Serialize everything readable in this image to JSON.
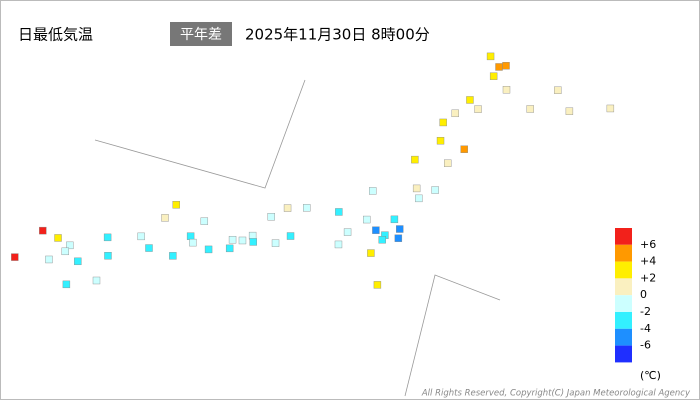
{
  "header": {
    "title": "日最低気温",
    "badge": "平年差",
    "datetime": "2025年11月30日 8時00分"
  },
  "legend": {
    "labels": [
      {
        "value": 6,
        "label": "+6"
      },
      {
        "value": 4,
        "label": "+4"
      },
      {
        "value": 2,
        "label": "+2"
      },
      0,
      -2,
      -4,
      -6
    ],
    "colors": [
      "#f2211b",
      "#ff9900",
      "#ffee00",
      "#faf0c0",
      "#ccffff",
      "#33f0ff",
      "#1e8fff",
      "#1f2fff"
    ],
    "unit": "(℃)"
  },
  "stations": [
    {
      "lon": 141.68,
      "lat": 45.4,
      "value": 3.5
    },
    {
      "lon": 142.0,
      "lat": 44.9,
      "value": 4.2
    },
    {
      "lon": 141.35,
      "lat": 43.06,
      "value": 2.5
    },
    {
      "lon": 142.37,
      "lat": 43.77,
      "value": 1.5
    },
    {
      "lon": 143.2,
      "lat": 42.9,
      "value": 1
    },
    {
      "lon": 144.38,
      "lat": 42.98,
      "value": 1.2
    },
    {
      "lon": 145.58,
      "lat": 43.33,
      "value": 0.5
    },
    {
      "lon": 140.7,
      "lat": 41.77,
      "value": 2.2
    },
    {
      "lon": 141.0,
      "lat": 42.3,
      "value": 1.8
    },
    {
      "lon": 143.9,
      "lat": 44.0,
      "value": 1.0
    },
    {
      "lon": 141.65,
      "lat": 42.63,
      "value": 0.8
    },
    {
      "lon": 142.2,
      "lat": 45.0,
      "value": 4.8
    },
    {
      "lon": 141.9,
      "lat": 44.4,
      "value": 2.6
    },
    {
      "lon": 140.74,
      "lat": 40.82,
      "value": 3.5
    },
    {
      "lon": 141.1,
      "lat": 39.7,
      "value": 1.2
    },
    {
      "lon": 140.1,
      "lat": 39.72,
      "value": 2.3
    },
    {
      "lon": 140.9,
      "lat": 38.26,
      "value": -0.5
    },
    {
      "lon": 140.34,
      "lat": 38.25,
      "value": 0.5
    },
    {
      "lon": 140.47,
      "lat": 37.75,
      "value": -1
    },
    {
      "lon": 141.5,
      "lat": 40.5,
      "value": 4.5
    },
    {
      "lon": 139.7,
      "lat": 35.69,
      "value": -3.5
    },
    {
      "lon": 140.1,
      "lat": 36.08,
      "value": -4.5
    },
    {
      "lon": 139.88,
      "lat": 36.55,
      "value": -2.5
    },
    {
      "lon": 139.06,
      "lat": 36.4,
      "value": -1.5
    },
    {
      "lon": 139.65,
      "lat": 35.44,
      "value": -2.2
    },
    {
      "lon": 140.12,
      "lat": 35.6,
      "value": -4.8
    },
    {
      "lon": 139.4,
      "lat": 35.9,
      "value": -5.5
    },
    {
      "lon": 139.05,
      "lat": 37.9,
      "value": -1
    },
    {
      "lon": 137.2,
      "lat": 36.7,
      "value": -0.8
    },
    {
      "lon": 136.63,
      "lat": 36.59,
      "value": 0.3
    },
    {
      "lon": 138.18,
      "lat": 36.65,
      "value": -2.8
    },
    {
      "lon": 138.57,
      "lat": 35.66,
      "value": -1.5
    },
    {
      "lon": 138.38,
      "lat": 34.98,
      "value": -1.2
    },
    {
      "lon": 136.9,
      "lat": 35.17,
      "value": -2.3
    },
    {
      "lon": 136.2,
      "lat": 36.06,
      "value": -0.6
    },
    {
      "lon": 135.5,
      "lat": 34.7,
      "value": -2
    },
    {
      "lon": 135.77,
      "lat": 35.0,
      "value": -1
    },
    {
      "lon": 135.2,
      "lat": 34.69,
      "value": -1.5
    },
    {
      "lon": 135.83,
      "lat": 34.68,
      "value": -3
    },
    {
      "lon": 135.17,
      "lat": 34.23,
      "value": -2.5
    },
    {
      "lon": 136.5,
      "lat": 34.73,
      "value": -1.8
    },
    {
      "lon": 133.93,
      "lat": 34.66,
      "value": -2.4
    },
    {
      "lon": 132.46,
      "lat": 34.4,
      "value": -1.3
    },
    {
      "lon": 134.24,
      "lat": 35.5,
      "value": -0.3
    },
    {
      "lon": 133.05,
      "lat": 35.47,
      "value": 0.5
    },
    {
      "lon": 131.47,
      "lat": 34.18,
      "value": -2.1
    },
    {
      "lon": 134.55,
      "lat": 34.07,
      "value": -2.7
    },
    {
      "lon": 134.04,
      "lat": 34.34,
      "value": -1.6
    },
    {
      "lon": 132.77,
      "lat": 33.84,
      "value": -3.1
    },
    {
      "lon": 133.53,
      "lat": 33.56,
      "value": -2.2
    },
    {
      "lon": 130.4,
      "lat": 33.58,
      "value": -1.2
    },
    {
      "lon": 130.3,
      "lat": 33.25,
      "value": -0.5
    },
    {
      "lon": 129.87,
      "lat": 32.75,
      "value": -1.8
    },
    {
      "lon": 130.74,
      "lat": 32.8,
      "value": -2.6
    },
    {
      "lon": 131.6,
      "lat": 33.24,
      "value": -2.2
    },
    {
      "lon": 131.42,
      "lat": 31.91,
      "value": -1.4
    },
    {
      "lon": 130.55,
      "lat": 31.56,
      "value": -3
    },
    {
      "lon": 129.5,
      "lat": 34.2,
      "value": 6.5
    },
    {
      "lon": 128.84,
      "lat": 32.7,
      "value": 7.0
    },
    {
      "lon": 130.0,
      "lat": 33.9,
      "value": 3.0
    },
    {
      "lon": 133.3,
      "lat": 36.2,
      "value": 2.5
    },
    {
      "lon": 139.4,
      "lat": 34.7,
      "value": 2.5
    },
    {
      "lon": 139.8,
      "lat": 33.1,
      "value": 3
    }
  ],
  "copyright": "All Rights Reserved, Copyright(C) Japan Meteorological Agency"
}
